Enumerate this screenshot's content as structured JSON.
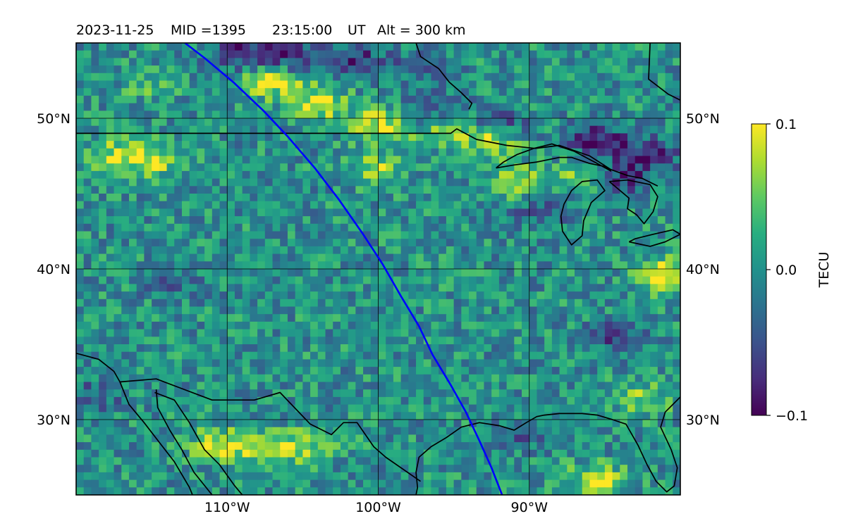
{
  "figure": {
    "header": {
      "date": "2023-11-25",
      "mid": "MID =1395",
      "time": "23:15:00",
      "time_unit": "UT",
      "altitude": "Alt = 300 km"
    },
    "map": {
      "extent": {
        "lon": [
          -120,
          -80
        ],
        "lat": [
          25,
          55
        ]
      },
      "lon_gridlines": [
        -110,
        -100,
        -90
      ],
      "lat_gridlines": [
        30,
        40,
        50
      ],
      "lon_tick_labels": [
        "110°W",
        "100°W",
        "90°W"
      ],
      "lat_tick_labels": [
        "30°N",
        "40°N",
        "50°N"
      ],
      "field": "TECU",
      "colormap": "viridis",
      "gridlines": true,
      "track_color": "#0000ff",
      "track": [
        {
          "lon": -112.8,
          "lat": 55.0
        },
        {
          "lon": -111.5,
          "lat": 54.0
        },
        {
          "lon": -109.6,
          "lat": 52.4
        },
        {
          "lon": -107.6,
          "lat": 50.5
        },
        {
          "lon": -106.0,
          "lat": 48.8
        },
        {
          "lon": -104.2,
          "lat": 46.7
        },
        {
          "lon": -102.6,
          "lat": 44.6
        },
        {
          "lon": -101.0,
          "lat": 42.3
        },
        {
          "lon": -99.7,
          "lat": 40.3
        },
        {
          "lon": -98.5,
          "lat": 38.2
        },
        {
          "lon": -97.3,
          "lat": 36.2
        },
        {
          "lon": -96.4,
          "lat": 34.3
        },
        {
          "lon": -95.2,
          "lat": 32.3
        },
        {
          "lon": -94.2,
          "lat": 30.5
        },
        {
          "lon": -93.3,
          "lat": 28.6
        },
        {
          "lon": -92.5,
          "lat": 26.8
        },
        {
          "lon": -91.8,
          "lat": 25.0
        }
      ],
      "enhancements": [
        {
          "lon": -107.0,
          "lat": 52.5,
          "value": 0.09
        },
        {
          "lon": -104.0,
          "lat": 51.0,
          "value": 0.09
        },
        {
          "lon": -100.0,
          "lat": 49.6,
          "value": 0.08
        },
        {
          "lon": -96.0,
          "lat": 49.4,
          "value": 0.08
        },
        {
          "lon": -92.5,
          "lat": 48.6,
          "value": 0.09
        },
        {
          "lon": -117.0,
          "lat": 47.5,
          "value": 0.08
        },
        {
          "lon": -114.5,
          "lat": 47.2,
          "value": 0.06
        },
        {
          "lon": -100.0,
          "lat": 46.6,
          "value": 0.07
        },
        {
          "lon": -91.0,
          "lat": 45.8,
          "value": 0.07
        },
        {
          "lon": -86.5,
          "lat": 46.2,
          "value": 0.06
        },
        {
          "lon": -81.0,
          "lat": 39.6,
          "value": 0.09
        },
        {
          "lon": -110.5,
          "lat": 28.3,
          "value": 0.08
        },
        {
          "lon": -107.0,
          "lat": 28.0,
          "value": 0.09
        },
        {
          "lon": -104.0,
          "lat": 28.4,
          "value": 0.05
        },
        {
          "lon": -82.5,
          "lat": 31.4,
          "value": 0.06
        },
        {
          "lon": -85.5,
          "lat": 25.9,
          "value": 0.09
        },
        {
          "lon": -115.0,
          "lat": 52.3,
          "value": 0.04
        }
      ],
      "depletions": [
        {
          "lon": -109.0,
          "lat": 54.4,
          "value": -0.09
        },
        {
          "lon": -105.5,
          "lat": 54.0,
          "value": -0.08
        },
        {
          "lon": -101.5,
          "lat": 53.8,
          "value": -0.07
        },
        {
          "lon": -97.0,
          "lat": 53.4,
          "value": -0.05
        },
        {
          "lon": -96.5,
          "lat": 50.2,
          "value": -0.07
        },
        {
          "lon": -92.0,
          "lat": 49.6,
          "value": -0.06
        },
        {
          "lon": -85.5,
          "lat": 48.5,
          "value": -0.09
        },
        {
          "lon": -82.0,
          "lat": 47.5,
          "value": -0.08
        },
        {
          "lon": -84.0,
          "lat": 46.0,
          "value": -0.07
        },
        {
          "lon": -89.0,
          "lat": 44.0,
          "value": -0.05
        },
        {
          "lon": -84.0,
          "lat": 35.5,
          "value": -0.06
        },
        {
          "lon": -113.5,
          "lat": 39.0,
          "value": -0.03
        },
        {
          "lon": -119.0,
          "lat": 31.5,
          "value": -0.05
        },
        {
          "lon": -91.0,
          "lat": 29.0,
          "value": -0.04
        }
      ],
      "coastlines": [
        {
          "name": "us-canada-border",
          "points": [
            [
              -120,
              49.0
            ],
            [
              -95.2,
              49.0
            ],
            [
              -94.8,
              49.3
            ],
            [
              -93.5,
              48.6
            ],
            [
              -91.5,
              48.2
            ],
            [
              -89.6,
              48.0
            ],
            [
              -88.0,
              48.2
            ],
            [
              -86.0,
              47.5
            ],
            [
              -84.6,
              46.6
            ],
            [
              -83.5,
              46.2
            ],
            [
              -82.5,
              46.0
            ],
            [
              -81.5,
              45.5
            ]
          ]
        },
        {
          "name": "lake-superior",
          "points": [
            [
              -92.2,
              46.7
            ],
            [
              -91.0,
              46.9
            ],
            [
              -89.5,
              47.1
            ],
            [
              -88.0,
              47.4
            ],
            [
              -87.2,
              47.4
            ],
            [
              -86.0,
              47.0
            ],
            [
              -85.0,
              46.8
            ],
            [
              -84.6,
              46.5
            ],
            [
              -85.5,
              47.0
            ],
            [
              -87.0,
              47.8
            ],
            [
              -88.5,
              48.3
            ],
            [
              -89.7,
              48.0
            ],
            [
              -90.8,
              47.6
            ],
            [
              -91.7,
              47.1
            ],
            [
              -92.2,
              46.7
            ]
          ]
        },
        {
          "name": "lake-michigan",
          "points": [
            [
              -87.8,
              42.5
            ],
            [
              -87.9,
              43.5
            ],
            [
              -87.7,
              44.3
            ],
            [
              -87.2,
              45.2
            ],
            [
              -86.5,
              45.8
            ],
            [
              -85.5,
              45.9
            ],
            [
              -85.0,
              45.2
            ],
            [
              -85.9,
              44.4
            ],
            [
              -86.4,
              43.2
            ],
            [
              -86.5,
              42.2
            ],
            [
              -87.2,
              41.6
            ],
            [
              -87.8,
              42.5
            ]
          ]
        },
        {
          "name": "lake-huron",
          "points": [
            [
              -84.7,
              45.8
            ],
            [
              -83.5,
              45.9
            ],
            [
              -82.0,
              45.6
            ],
            [
              -81.5,
              44.8
            ],
            [
              -81.8,
              43.8
            ],
            [
              -82.4,
              43.0
            ],
            [
              -82.9,
              43.6
            ],
            [
              -83.5,
              44.0
            ],
            [
              -83.4,
              44.7
            ],
            [
              -84.7,
              45.8
            ]
          ]
        },
        {
          "name": "lake-erie",
          "points": [
            [
              -83.4,
              41.8
            ],
            [
              -82.0,
              41.5
            ],
            [
              -81.0,
              41.8
            ],
            [
              -80.0,
              42.3
            ],
            [
              -80.5,
              42.6
            ],
            [
              -81.8,
              42.3
            ],
            [
              -83.0,
              42.0
            ],
            [
              -83.4,
              41.8
            ]
          ]
        },
        {
          "name": "hudson-bay-coast",
          "points": [
            [
              -97.5,
              55.0
            ],
            [
              -97.2,
              54.1
            ],
            [
              -96.0,
              53.3
            ],
            [
              -95.3,
              52.4
            ],
            [
              -94.5,
              51.7
            ],
            [
              -93.8,
              51.0
            ],
            [
              -94.0,
              50.6
            ]
          ]
        },
        {
          "name": "east-coast-north",
          "points": [
            [
              -82.0,
              55.0
            ],
            [
              -82.1,
              52.6
            ],
            [
              -80.8,
              51.6
            ],
            [
              -80.0,
              51.2
            ]
          ]
        },
        {
          "name": "gulf-coast",
          "points": [
            [
              -80.0,
              31.5
            ],
            [
              -81.0,
              30.5
            ],
            [
              -81.3,
              29.5
            ],
            [
              -80.6,
              28.0
            ],
            [
              -80.2,
              26.8
            ],
            [
              -80.4,
              25.6
            ],
            [
              -80.9,
              25.2
            ],
            [
              -81.6,
              25.9
            ],
            [
              -82.2,
              27.0
            ],
            [
              -82.8,
              28.3
            ],
            [
              -83.6,
              29.7
            ],
            [
              -84.5,
              30.0
            ],
            [
              -85.5,
              30.3
            ],
            [
              -86.5,
              30.4
            ],
            [
              -88.0,
              30.4
            ],
            [
              -89.0,
              30.3
            ],
            [
              -89.5,
              30.2
            ],
            [
              -90.2,
              29.8
            ],
            [
              -91.0,
              29.3
            ],
            [
              -92.0,
              29.6
            ],
            [
              -93.3,
              29.8
            ],
            [
              -94.5,
              29.5
            ],
            [
              -95.5,
              28.8
            ],
            [
              -96.5,
              28.2
            ],
            [
              -97.3,
              27.5
            ],
            [
              -97.5,
              26.5
            ],
            [
              -97.4,
              25.5
            ],
            [
              -97.5,
              25.0
            ]
          ]
        },
        {
          "name": "us-mexico-border",
          "points": [
            [
              -117.1,
              32.5
            ],
            [
              -114.7,
              32.7
            ],
            [
              -111.0,
              31.3
            ],
            [
              -108.2,
              31.3
            ],
            [
              -106.5,
              31.8
            ],
            [
              -104.5,
              29.7
            ],
            [
              -103.1,
              29.0
            ],
            [
              -102.3,
              29.8
            ],
            [
              -101.4,
              29.8
            ],
            [
              -100.3,
              28.2
            ],
            [
              -99.5,
              27.5
            ],
            [
              -97.2,
              25.9
            ]
          ]
        },
        {
          "name": "pacific-coast",
          "points": [
            [
              -120,
              34.4
            ],
            [
              -118.5,
              34.0
            ],
            [
              -117.5,
              33.2
            ],
            [
              -117.1,
              32.5
            ],
            [
              -116.5,
              31.0
            ],
            [
              -115.5,
              29.8
            ],
            [
              -114.5,
              28.5
            ],
            [
              -113.5,
              27.2
            ],
            [
              -112.5,
              25.5
            ],
            [
              -112.3,
              25.0
            ]
          ]
        },
        {
          "name": "gulf-of-california-east",
          "points": [
            [
              -114.8,
              31.8
            ],
            [
              -113.5,
              31.3
            ],
            [
              -112.5,
              29.8
            ],
            [
              -111.5,
              28.0
            ],
            [
              -110.5,
              27.0
            ],
            [
              -109.5,
              25.6
            ],
            [
              -109.0,
              25.0
            ]
          ]
        },
        {
          "name": "baja-gulf-side",
          "points": [
            [
              -114.7,
              32.0
            ],
            [
              -114.6,
              30.8
            ],
            [
              -113.8,
              29.3
            ],
            [
              -113.0,
              28.0
            ],
            [
              -112.2,
              26.5
            ],
            [
              -111.0,
              25.0
            ]
          ]
        }
      ]
    },
    "colorbar": {
      "label": "TECU",
      "ticks": [
        "0.1",
        "0.0",
        "−0.1"
      ],
      "range": [
        -0.1,
        0.1
      ]
    }
  }
}
